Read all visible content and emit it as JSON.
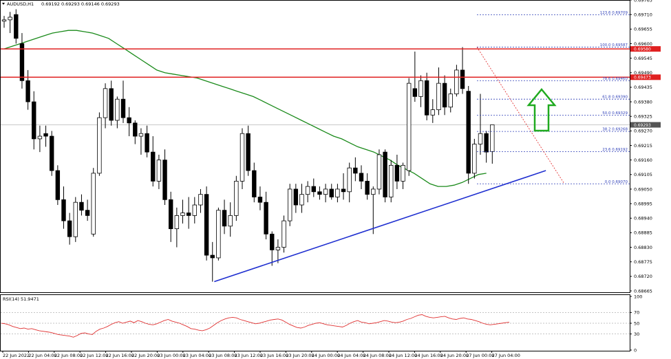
{
  "chart_data": {
    "type": "candlestick",
    "symbol_label": "AUDUSD,H1",
    "ohlc_label": "0.69192 0.69293 0.69146 0.69293",
    "price_axis_ticks": [
      "0.69765",
      "0.69710",
      "0.69655",
      "0.69600",
      "0.69545",
      "0.69490",
      "0.69435",
      "0.69380",
      "0.69325",
      "0.69270",
      "0.69215",
      "0.69160",
      "0.69105",
      "0.69050",
      "0.68995",
      "0.68940",
      "0.68885",
      "0.68830",
      "0.68775",
      "0.68720",
      "0.68665"
    ],
    "ylim": [
      0.68665,
      0.69765
    ],
    "current_price": "0.69293",
    "x_labels": [
      "22 Jun 2022",
      "22 Jun 04:00",
      "22 Jun 08:00",
      "22 Jun 12:00",
      "22 Jun 16:00",
      "22 Jun 20:00",
      "23 Jun 00:00",
      "23 Jun 04:00",
      "23 Jun 08:00",
      "23 Jun 12:00",
      "23 Jun 16:00",
      "23 Jun 20:00",
      "24 Jun 00:00",
      "24 Jun 04:00",
      "24 Jun 08:00",
      "24 Jun 12:00",
      "24 Jun 16:00",
      "24 Jun 20:00",
      "27 Jun 00:00",
      "27 Jun 04:00"
    ],
    "candles": [
      {
        "o": 0.69685,
        "h": 0.69705,
        "l": 0.6966,
        "c": 0.6969
      },
      {
        "o": 0.6969,
        "h": 0.6972,
        "l": 0.6964,
        "c": 0.697
      },
      {
        "o": 0.6971,
        "h": 0.6973,
        "l": 0.696,
        "c": 0.6962
      },
      {
        "o": 0.696,
        "h": 0.6964,
        "l": 0.6943,
        "c": 0.6946
      },
      {
        "o": 0.6946,
        "h": 0.695,
        "l": 0.6935,
        "c": 0.6938
      },
      {
        "o": 0.6938,
        "h": 0.6942,
        "l": 0.692,
        "c": 0.6924
      },
      {
        "o": 0.6924,
        "h": 0.6929,
        "l": 0.6919,
        "c": 0.6925
      },
      {
        "o": 0.6926,
        "h": 0.6929,
        "l": 0.6921,
        "c": 0.6925
      },
      {
        "o": 0.6925,
        "h": 0.6927,
        "l": 0.691,
        "c": 0.6912
      },
      {
        "o": 0.6912,
        "h": 0.6914,
        "l": 0.6899,
        "c": 0.6901
      },
      {
        "o": 0.6901,
        "h": 0.6906,
        "l": 0.689,
        "c": 0.6893
      },
      {
        "o": 0.6893,
        "h": 0.6896,
        "l": 0.6884,
        "c": 0.6887
      },
      {
        "o": 0.6887,
        "h": 0.6902,
        "l": 0.6885,
        "c": 0.69
      },
      {
        "o": 0.69,
        "h": 0.6903,
        "l": 0.6895,
        "c": 0.6897
      },
      {
        "o": 0.6897,
        "h": 0.6901,
        "l": 0.6893,
        "c": 0.6895
      },
      {
        "o": 0.6888,
        "h": 0.6913,
        "l": 0.6887,
        "c": 0.6911
      },
      {
        "o": 0.6911,
        "h": 0.6934,
        "l": 0.691,
        "c": 0.6932
      },
      {
        "o": 0.6932,
        "h": 0.6945,
        "l": 0.6928,
        "c": 0.6943
      },
      {
        "o": 0.6943,
        "h": 0.6946,
        "l": 0.6929,
        "c": 0.6931
      },
      {
        "o": 0.6931,
        "h": 0.694,
        "l": 0.6928,
        "c": 0.6939
      },
      {
        "o": 0.6939,
        "h": 0.6946,
        "l": 0.693,
        "c": 0.6932
      },
      {
        "o": 0.6932,
        "h": 0.6936,
        "l": 0.6925,
        "c": 0.693
      },
      {
        "o": 0.693,
        "h": 0.6931,
        "l": 0.6922,
        "c": 0.6925
      },
      {
        "o": 0.6925,
        "h": 0.6928,
        "l": 0.6918,
        "c": 0.6926
      },
      {
        "o": 0.6926,
        "h": 0.6929,
        "l": 0.6917,
        "c": 0.6919
      },
      {
        "o": 0.6919,
        "h": 0.6925,
        "l": 0.6906,
        "c": 0.6908
      },
      {
        "o": 0.6908,
        "h": 0.6918,
        "l": 0.6905,
        "c": 0.6916
      },
      {
        "o": 0.6916,
        "h": 0.692,
        "l": 0.6899,
        "c": 0.6901
      },
      {
        "o": 0.6901,
        "h": 0.6904,
        "l": 0.6885,
        "c": 0.689
      },
      {
        "o": 0.689,
        "h": 0.6898,
        "l": 0.6883,
        "c": 0.6895
      },
      {
        "o": 0.6895,
        "h": 0.6901,
        "l": 0.6892,
        "c": 0.6896
      },
      {
        "o": 0.6896,
        "h": 0.6902,
        "l": 0.689,
        "c": 0.6895
      },
      {
        "o": 0.6895,
        "h": 0.6902,
        "l": 0.6892,
        "c": 0.6899
      },
      {
        "o": 0.6899,
        "h": 0.6905,
        "l": 0.6896,
        "c": 0.6903
      },
      {
        "o": 0.6903,
        "h": 0.6906,
        "l": 0.6878,
        "c": 0.688
      },
      {
        "o": 0.688,
        "h": 0.6885,
        "l": 0.687,
        "c": 0.6879
      },
      {
        "o": 0.6879,
        "h": 0.6898,
        "l": 0.6878,
        "c": 0.6897
      },
      {
        "o": 0.6897,
        "h": 0.6901,
        "l": 0.6888,
        "c": 0.6891
      },
      {
        "o": 0.6891,
        "h": 0.69,
        "l": 0.6887,
        "c": 0.6895
      },
      {
        "o": 0.6895,
        "h": 0.691,
        "l": 0.6893,
        "c": 0.6908
      },
      {
        "o": 0.6908,
        "h": 0.6928,
        "l": 0.6905,
        "c": 0.6926
      },
      {
        "o": 0.6926,
        "h": 0.6929,
        "l": 0.691,
        "c": 0.6912
      },
      {
        "o": 0.6912,
        "h": 0.6915,
        "l": 0.69,
        "c": 0.6902
      },
      {
        "o": 0.6902,
        "h": 0.6906,
        "l": 0.6897,
        "c": 0.69
      },
      {
        "o": 0.69,
        "h": 0.6904,
        "l": 0.6886,
        "c": 0.6888
      },
      {
        "o": 0.6888,
        "h": 0.6889,
        "l": 0.6876,
        "c": 0.6882
      },
      {
        "o": 0.6882,
        "h": 0.6886,
        "l": 0.6877,
        "c": 0.6883
      },
      {
        "o": 0.6883,
        "h": 0.6895,
        "l": 0.6881,
        "c": 0.6893
      },
      {
        "o": 0.6893,
        "h": 0.6907,
        "l": 0.6891,
        "c": 0.6905
      },
      {
        "o": 0.6905,
        "h": 0.6907,
        "l": 0.6896,
        "c": 0.6899
      },
      {
        "o": 0.6899,
        "h": 0.6907,
        "l": 0.6896,
        "c": 0.6903
      },
      {
        "o": 0.6903,
        "h": 0.6908,
        "l": 0.69,
        "c": 0.6906
      },
      {
        "o": 0.6906,
        "h": 0.6909,
        "l": 0.6902,
        "c": 0.6904
      },
      {
        "o": 0.6904,
        "h": 0.6906,
        "l": 0.6901,
        "c": 0.6903
      },
      {
        "o": 0.6903,
        "h": 0.6907,
        "l": 0.69,
        "c": 0.6905
      },
      {
        "o": 0.6905,
        "h": 0.6907,
        "l": 0.6901,
        "c": 0.6902
      },
      {
        "o": 0.6902,
        "h": 0.6907,
        "l": 0.69,
        "c": 0.6905
      },
      {
        "o": 0.6905,
        "h": 0.6911,
        "l": 0.6901,
        "c": 0.6904
      },
      {
        "o": 0.6904,
        "h": 0.6915,
        "l": 0.69,
        "c": 0.6913
      },
      {
        "o": 0.6913,
        "h": 0.6917,
        "l": 0.6908,
        "c": 0.6911
      },
      {
        "o": 0.6911,
        "h": 0.6914,
        "l": 0.6905,
        "c": 0.6908
      },
      {
        "o": 0.6908,
        "h": 0.6911,
        "l": 0.6901,
        "c": 0.6903
      },
      {
        "o": 0.6903,
        "h": 0.6906,
        "l": 0.6888,
        "c": 0.6905
      },
      {
        "o": 0.6905,
        "h": 0.692,
        "l": 0.6903,
        "c": 0.6918
      },
      {
        "o": 0.6919,
        "h": 0.692,
        "l": 0.69,
        "c": 0.6902
      },
      {
        "o": 0.6902,
        "h": 0.6916,
        "l": 0.69,
        "c": 0.6914
      },
      {
        "o": 0.6914,
        "h": 0.6918,
        "l": 0.6905,
        "c": 0.6908
      },
      {
        "o": 0.6908,
        "h": 0.6915,
        "l": 0.6905,
        "c": 0.6914
      },
      {
        "o": 0.6912,
        "h": 0.6947,
        "l": 0.691,
        "c": 0.6945
      },
      {
        "o": 0.6943,
        "h": 0.6957,
        "l": 0.6938,
        "c": 0.694
      },
      {
        "o": 0.694,
        "h": 0.6948,
        "l": 0.6936,
        "c": 0.6946
      },
      {
        "o": 0.6946,
        "h": 0.6949,
        "l": 0.6931,
        "c": 0.6933
      },
      {
        "o": 0.6933,
        "h": 0.6939,
        "l": 0.693,
        "c": 0.6935
      },
      {
        "o": 0.6935,
        "h": 0.6951,
        "l": 0.6933,
        "c": 0.6945
      },
      {
        "o": 0.6945,
        "h": 0.6948,
        "l": 0.6933,
        "c": 0.6936
      },
      {
        "o": 0.6936,
        "h": 0.6943,
        "l": 0.6934,
        "c": 0.6941
      },
      {
        "o": 0.6941,
        "h": 0.6952,
        "l": 0.694,
        "c": 0.695
      },
      {
        "o": 0.695,
        "h": 0.69587,
        "l": 0.6941,
        "c": 0.6943
      },
      {
        "o": 0.6942,
        "h": 0.6944,
        "l": 0.6907,
        "c": 0.6911
      },
      {
        "o": 0.6911,
        "h": 0.6924,
        "l": 0.6909,
        "c": 0.6922
      },
      {
        "o": 0.6922,
        "h": 0.6941,
        "l": 0.6918,
        "c": 0.6926
      },
      {
        "o": 0.6926,
        "h": 0.6927,
        "l": 0.6915,
        "c": 0.6919
      },
      {
        "o": 0.69192,
        "h": 0.69293,
        "l": 0.69146,
        "c": 0.69293
      }
    ],
    "ma": [
      0.6958,
      0.6959,
      0.696,
      0.6961,
      0.6962,
      0.6963,
      0.6964,
      0.69645,
      0.6965,
      0.6965,
      0.69645,
      0.6964,
      0.6963,
      0.6962,
      0.696,
      0.6958,
      0.6956,
      0.6954,
      0.6952,
      0.695,
      0.6949,
      0.69485,
      0.6948,
      0.69475,
      0.6947,
      0.6946,
      0.6945,
      0.6944,
      0.6943,
      0.6942,
      0.6941,
      0.694,
      0.69385,
      0.6937,
      0.69355,
      0.6934,
      0.69325,
      0.6931,
      0.69295,
      0.6928,
      0.69265,
      0.6925,
      0.6924,
      0.69225,
      0.6921,
      0.692,
      0.6919,
      0.69175,
      0.6916,
      0.6914,
      0.69125,
      0.6911,
      0.6909,
      0.6907,
      0.6906,
      0.6906,
      0.69065,
      0.69075,
      0.6909,
      0.69105,
      0.6911
    ],
    "ma_step": 1.35,
    "resistance_levels": [
      {
        "price": 0.6958,
        "label": "0.69580"
      },
      {
        "price": 0.69473,
        "label": "0.69473"
      }
    ],
    "fib_levels": [
      {
        "label": "123.6 0.69709",
        "price": 0.69709
      },
      {
        "label": "100.0 0.69587",
        "price": 0.69587
      },
      {
        "label": "78.6 0.69460",
        "price": 0.6946
      },
      {
        "label": "61.8 0.69390",
        "price": 0.6939
      },
      {
        "label": "50.0 0.69329",
        "price": 0.69329
      },
      {
        "label": "38.2 0.69268",
        "price": 0.69268
      },
      {
        "label": "23.6 0.69192",
        "price": 0.69192
      },
      {
        "label": "0.0 0.69070",
        "price": 0.6907
      }
    ],
    "trendline": {
      "from_index": 35.3,
      "from_price": 0.687,
      "to_index": 91.0,
      "to_price": 0.6912
    },
    "rsi": {
      "label": "RSI(14) 51.9471",
      "ticks": [
        "100",
        "70",
        "50",
        "30",
        "0"
      ],
      "levels": [
        70,
        50,
        30
      ],
      "values": [
        50,
        49,
        47,
        44,
        42,
        40,
        41,
        39,
        40,
        38,
        36,
        35,
        34,
        33,
        31,
        29,
        28,
        27,
        26,
        24,
        27,
        31,
        32,
        30,
        29,
        35,
        39,
        41,
        44,
        48,
        51,
        53,
        50,
        52,
        54,
        51,
        55,
        53,
        50,
        48,
        47,
        49,
        52,
        55,
        57,
        54,
        52,
        50,
        47,
        44,
        40,
        39,
        37,
        36,
        38,
        41,
        46,
        51,
        55,
        58,
        60,
        61,
        60,
        57,
        55,
        53,
        51,
        49,
        50,
        52,
        54,
        56,
        57,
        58,
        56,
        52,
        48,
        45,
        42,
        41,
        43,
        46,
        48,
        50,
        51,
        49,
        47,
        46,
        45,
        44,
        43,
        46,
        50,
        53,
        55,
        52,
        51,
        49,
        50,
        51,
        53,
        55,
        54,
        52,
        51,
        52,
        54,
        57,
        59,
        62,
        65,
        66,
        63,
        61,
        60,
        61,
        62,
        63,
        60,
        58,
        57,
        59,
        60,
        58,
        57,
        55,
        53,
        50,
        48,
        47,
        48,
        49,
        50,
        51,
        52
      ],
      "ylim": [
        0,
        100
      ]
    }
  }
}
